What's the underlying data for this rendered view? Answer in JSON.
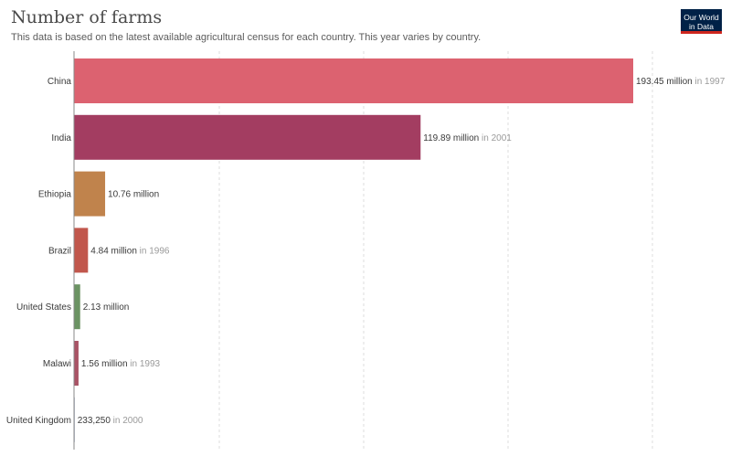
{
  "header": {
    "title": "Number of farms",
    "subtitle": "This data is based on the latest available agricultural census for each country. This year varies by country."
  },
  "logo": {
    "line1": "Our World",
    "line2": "in Data",
    "bg_color": "#002147",
    "accent_color": "#ce261e"
  },
  "chart_data": {
    "type": "bar",
    "orientation": "horizontal",
    "title": "Number of farms",
    "subtitle": "This data is based on the latest available agricultural census for each country. This year varies by country.",
    "categories": [
      "China",
      "India",
      "Ethiopia",
      "Brazil",
      "United States",
      "Malawi",
      "United Kingdom"
    ],
    "values": [
      193450000,
      119890000,
      10760000,
      4840000,
      2130000,
      1560000,
      233250
    ],
    "value_labels": [
      "193.45 million",
      "119.89 million",
      "10.76 million",
      "4.84 million",
      "2.13 million",
      "1.56 million",
      "233,250"
    ],
    "year_labels": [
      "in 1997",
      "in 2001",
      "",
      "in 1996",
      "",
      "in 1993",
      "in 2000"
    ],
    "colors": [
      "#dc6270",
      "#a33d61",
      "#c0834c",
      "#c1574c",
      "#6b9363",
      "#a95365",
      "#7b8da8"
    ],
    "xlim": [
      0,
      193450000
    ],
    "grid": true
  }
}
